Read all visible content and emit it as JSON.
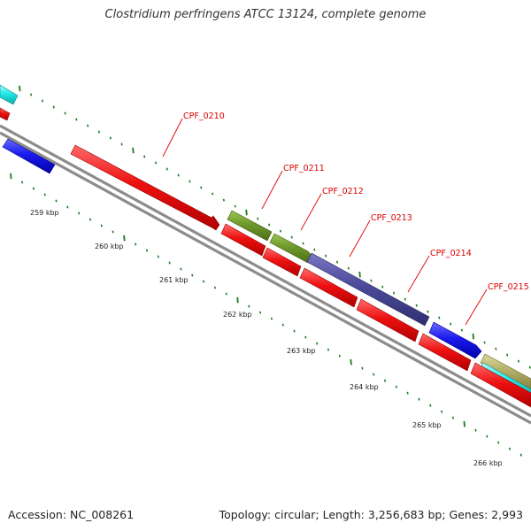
{
  "title": "Clostridium perfringens ATCC 13124, complete genome",
  "accession": "Accession: NC_008261",
  "summary": "Topology: circular; Length: 3,256,683 bp; Genes: 2,993",
  "colors": {
    "backbone": "#8c8c8c",
    "tick": "#1f7a1f",
    "label": "#dd0000",
    "gene_red": "#ee1111",
    "gene_blue": "#1a1aee",
    "gene_cyan": "#22e8e8",
    "gene_olive": "#6f9a2a",
    "gene_slate": "#4b4a9a",
    "gene_khaki": "#b4b06a"
  },
  "kbp_labels": [
    {
      "id": "259",
      "text": "259 kbp"
    },
    {
      "id": "260",
      "text": "260 kbp"
    },
    {
      "id": "261",
      "text": "261 kbp"
    },
    {
      "id": "262",
      "text": "262 kbp"
    },
    {
      "id": "263",
      "text": "263 kbp"
    },
    {
      "id": "264",
      "text": "264 kbp"
    },
    {
      "id": "265",
      "text": "265 kbp"
    },
    {
      "id": "266",
      "text": "266 kbp"
    }
  ],
  "gene_labels": [
    {
      "id": "0210",
      "text": "CPF_0210"
    },
    {
      "id": "0211",
      "text": "CPF_0211"
    },
    {
      "id": "0212",
      "text": "CPF_0212"
    },
    {
      "id": "0213",
      "text": "CPF_0213"
    },
    {
      "id": "0214",
      "text": "CPF_0214"
    },
    {
      "id": "0215",
      "text": "CPF_0215"
    }
  ]
}
